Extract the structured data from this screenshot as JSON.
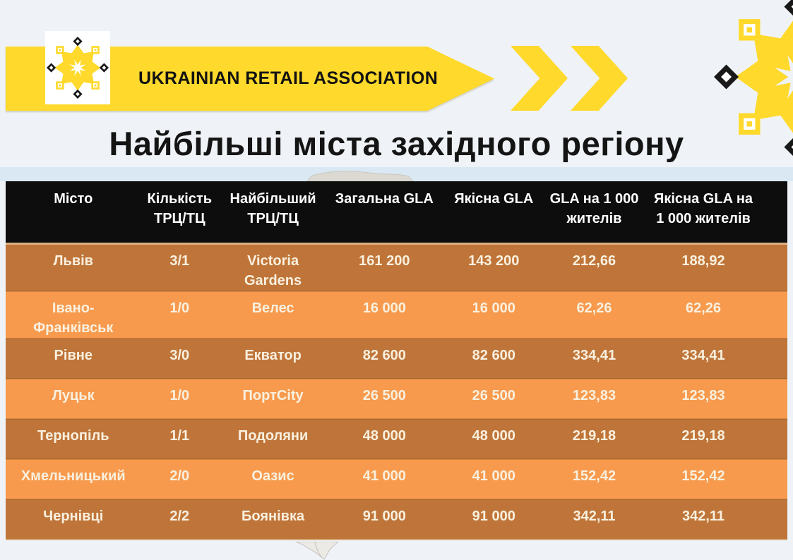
{
  "brand": {
    "name": "UKRAINIAN RETAIL ASSOCIATION"
  },
  "title": "Найбільші міста західного регіону",
  "colors": {
    "accent_yellow": "#FFD92B",
    "header_bg": "#0D0D0D",
    "row_dark": "#BF7539",
    "row_light": "#F79A4D",
    "band_blue": "#D9E8F2",
    "page_bg": "#EFF3F7",
    "body_text": "#F9F0DF"
  },
  "table": {
    "columns": [
      "Місто",
      "Кількість\nТРЦ/ТЦ",
      "Найбільший\nТРЦ/ТЦ",
      "Загальна GLA",
      "Якісна GLA",
      "GLA на 1 000\nжителів",
      "Якісна GLA на\n1 000 жителів"
    ],
    "column_keys": [
      "city",
      "mall-count",
      "largest-mall",
      "total-gla",
      "quality-gla",
      "gla-per-1000",
      "quality-gla-per-1000"
    ],
    "rows": [
      [
        "Львів",
        "3/1",
        "Victoria\nGardens",
        "161 200",
        "143 200",
        "212,66",
        "188,92"
      ],
      [
        "Івано-\nФранківськ",
        "1/0",
        "Велес",
        "16 000",
        "16 000",
        "62,26",
        "62,26"
      ],
      [
        "Рівне",
        "3/0",
        "Екватор",
        "82 600",
        "82 600",
        "334,41",
        "334,41"
      ],
      [
        "Луцьк",
        "1/0",
        "ПортCity",
        "26 500",
        "26 500",
        "123,83",
        "123,83"
      ],
      [
        "Тернопіль",
        "1/1",
        "Подоляни",
        "48 000",
        "48 000",
        "219,18",
        "219,18"
      ],
      [
        "Хмельницький",
        "2/0",
        "Оазис",
        "41 000",
        "41 000",
        "152,42",
        "152,42"
      ],
      [
        "Чернівці",
        "2/2",
        "Боянівка",
        "91 000",
        "91 000",
        "342,11",
        "342,11"
      ]
    ]
  },
  "chart_data": {
    "type": "table",
    "title": "Найбільші міста західного регіону",
    "categories": [
      "Львів",
      "Івано-Франківськ",
      "Рівне",
      "Луцьк",
      "Тернопіль",
      "Хмельницький",
      "Чернівці"
    ],
    "series": [
      {
        "name": "Кількість ТРЦ/ТЦ",
        "values": [
          "3/1",
          "1/0",
          "3/0",
          "1/0",
          "1/1",
          "2/0",
          "2/2"
        ]
      },
      {
        "name": "Найбільший ТРЦ/ТЦ",
        "values": [
          "Victoria Gardens",
          "Велес",
          "Екватор",
          "ПортCity",
          "Подоляни",
          "Оазис",
          "Боянівка"
        ]
      },
      {
        "name": "Загальна GLA",
        "values": [
          161200,
          16000,
          82600,
          26500,
          48000,
          41000,
          91000
        ]
      },
      {
        "name": "Якісна GLA",
        "values": [
          143200,
          16000,
          82600,
          26500,
          48000,
          41000,
          91000
        ]
      },
      {
        "name": "GLA на 1 000 жителів",
        "values": [
          212.66,
          62.26,
          334.41,
          123.83,
          219.18,
          152.42,
          342.11
        ]
      },
      {
        "name": "Якісна GLA на 1 000 жителів",
        "values": [
          188.92,
          62.26,
          334.41,
          123.83,
          219.18,
          152.42,
          342.11
        ]
      }
    ]
  }
}
